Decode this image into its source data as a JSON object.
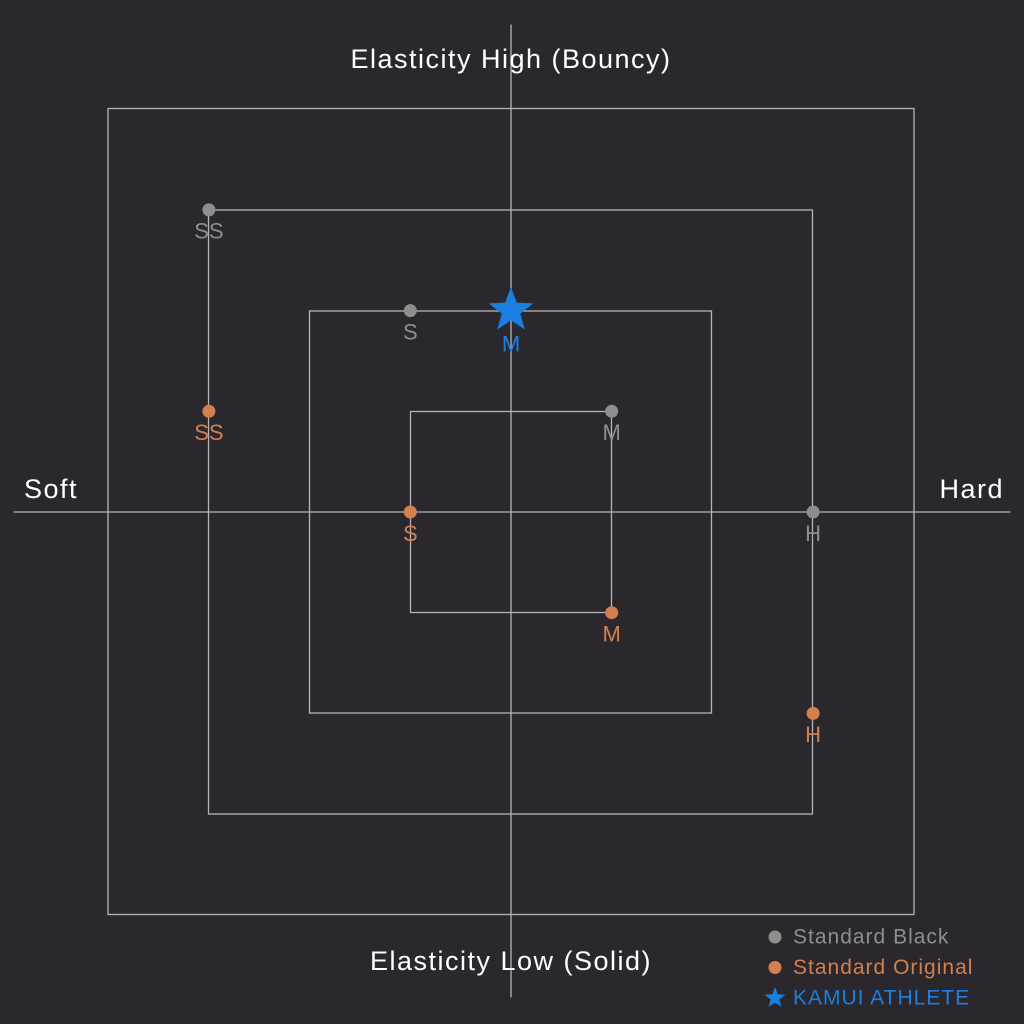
{
  "chart_data": {
    "type": "scatter",
    "y_label_top": "Elasticity High (Bouncy)",
    "y_label_bottom": "Elasticity Low (Solid)",
    "x_label_left": "Soft",
    "x_label_right": "Hard",
    "xlim": [
      -5,
      5
    ],
    "ylim": [
      -5,
      5
    ],
    "legend": "bottom-right",
    "series": [
      {
        "name": "Standard Black",
        "color": "#8e8e8e",
        "marker": "circle",
        "x": [
          -3,
          -1,
          1,
          3
        ],
        "values": [
          3,
          2,
          1,
          0
        ],
        "labels": [
          "SS",
          "S",
          "M",
          "H"
        ]
      },
      {
        "name": "Standard Original",
        "color": "#d4804e",
        "marker": "circle",
        "x": [
          -3,
          -1,
          1,
          3
        ],
        "values": [
          1,
          0,
          -1,
          -2
        ],
        "labels": [
          "SS",
          "S",
          "M",
          "H"
        ]
      },
      {
        "name": "KAMUI ATHLETE",
        "color": "#1a7fe0",
        "marker": "star",
        "x": [
          0
        ],
        "values": [
          2
        ],
        "labels": [
          "M"
        ]
      }
    ]
  }
}
